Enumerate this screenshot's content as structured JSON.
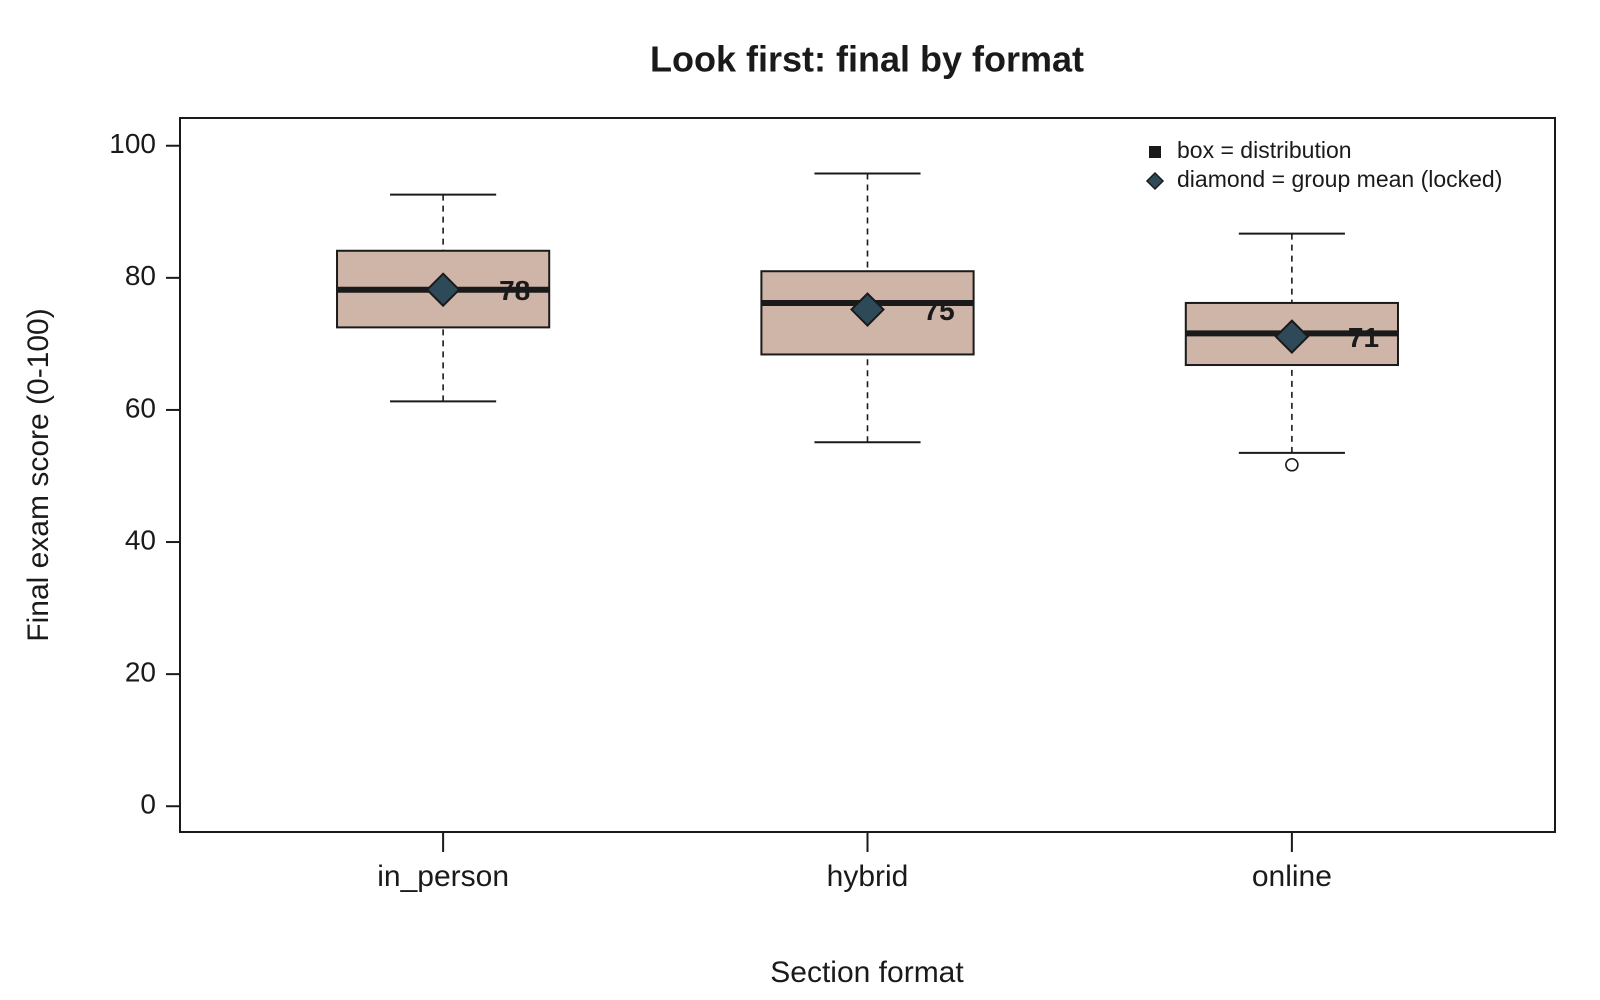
{
  "chart_data": {
    "type": "box",
    "title": "Look first: final by format",
    "x_label": "Section format",
    "y_label": "Final exam score (0-100)",
    "categories": [
      "in_person",
      "hybrid",
      "online"
    ],
    "series": [
      {
        "whisker_low": [
          61.3,
          55.1,
          53.5
        ],
        "q1": [
          72.5,
          68.4,
          66.8
        ],
        "median": [
          78.2,
          76.2,
          71.6
        ],
        "q3": [
          84.1,
          81.0,
          76.2
        ],
        "whisker_high": [
          92.6,
          95.8,
          86.7
        ],
        "outliers": [
          [],
          [],
          [
            51.7
          ]
        ],
        "mean": [
          78.2,
          75.2,
          71.1
        ],
        "mean_labels": [
          "78",
          "75",
          "71"
        ],
        "color": "#cfb5a8",
        "mean_color": "#2e4a58"
      }
    ],
    "ylim": [
      -3.9,
      104.2
    ],
    "yticks": [
      0,
      20,
      40,
      60,
      80,
      100
    ],
    "legend": {
      "position": "top-right",
      "entries": [
        {
          "label": "box = distribution",
          "marker": "square"
        },
        {
          "label": "diamond = group mean (locked)",
          "marker": "diamond"
        }
      ]
    }
  }
}
